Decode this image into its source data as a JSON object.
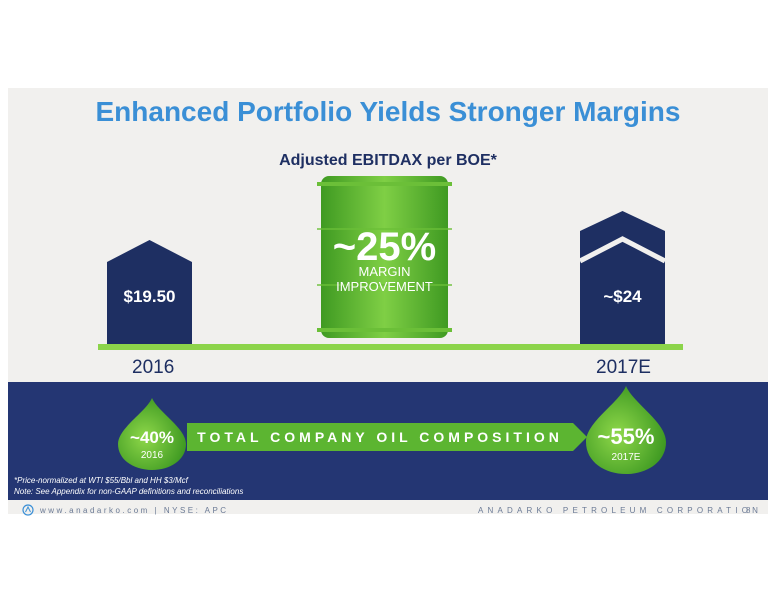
{
  "slide": {
    "title": "Enhanced Portfolio Yields Stronger Margins",
    "chart_title": "Adjusted EBITDAX per BOE*",
    "bar_2016": {
      "value_label": "$19.50",
      "year": "2016"
    },
    "bar_2017": {
      "value_label": "~$24",
      "year": "2017E"
    },
    "barrel": {
      "percent": "~25%",
      "line1": "MARGIN",
      "line2": "IMPROVEMENT"
    }
  },
  "chart_data": {
    "type": "bar",
    "title": "Adjusted EBITDAX per BOE*",
    "categories": [
      "2016",
      "2017E"
    ],
    "values": [
      19.5,
      24
    ],
    "value_labels": [
      "$19.50",
      "~$24"
    ],
    "annotation": "~25% MARGIN IMPROVEMENT"
  },
  "oil": {
    "banner": "TOTAL COMPANY OIL COMPOSITION",
    "left": {
      "percent": "~40%",
      "year": "2016"
    },
    "right": {
      "percent": "~55%",
      "year": "2017E"
    }
  },
  "footnotes": {
    "line1": "*Price-normalized at WTI $55/Bbl and HH $3/Mcf",
    "line2": "Note: See Appendix for non-GAAP definitions and reconciliations"
  },
  "footer": {
    "left": "www.anadarko.com | NYSE: APC",
    "right": "ANADARKO PETROLEUM CORPORATION",
    "page": "8"
  },
  "colors": {
    "title_blue": "#3a8fd6",
    "navy": "#1e2f62",
    "band_navy": "#243673",
    "green": "#5cb531",
    "light_green": "#8cd44a"
  }
}
